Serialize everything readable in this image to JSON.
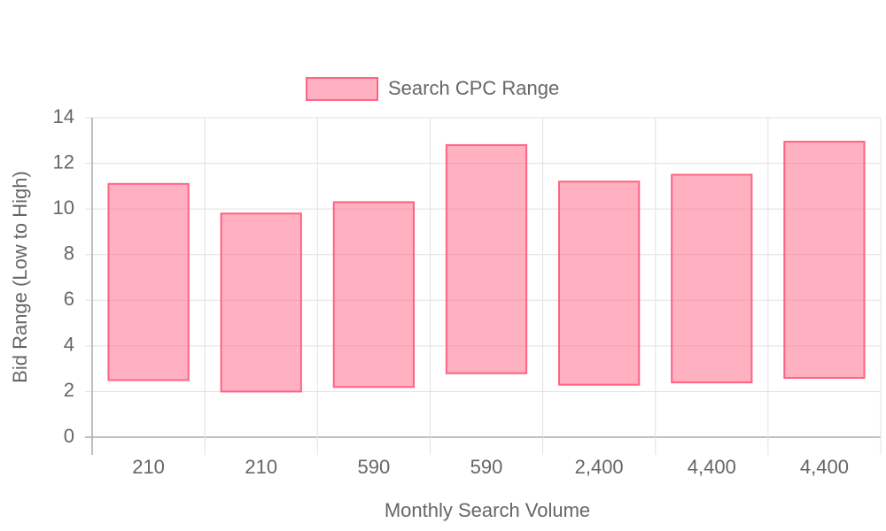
{
  "chart_data": {
    "type": "floating-bar",
    "x_label": "Monthly Search Volume",
    "y_label": "Bid Range (Low to High)",
    "categories": [
      "210",
      "210",
      "590",
      "590",
      "2,400",
      "4,400",
      "4,400"
    ],
    "series": [
      {
        "name": "Search CPC Range",
        "color": "#ff6384",
        "values": [
          [
            2.5,
            11.1
          ],
          [
            2.0,
            9.8
          ],
          [
            2.2,
            10.3
          ],
          [
            2.8,
            12.8
          ],
          [
            2.3,
            11.2
          ],
          [
            2.4,
            11.5
          ],
          [
            2.6,
            12.95
          ]
        ]
      }
    ],
    "ylim": [
      0,
      14
    ],
    "yticks": [
      0,
      2,
      4,
      6,
      8,
      10,
      12,
      14
    ],
    "grid": true,
    "legend": "top"
  }
}
